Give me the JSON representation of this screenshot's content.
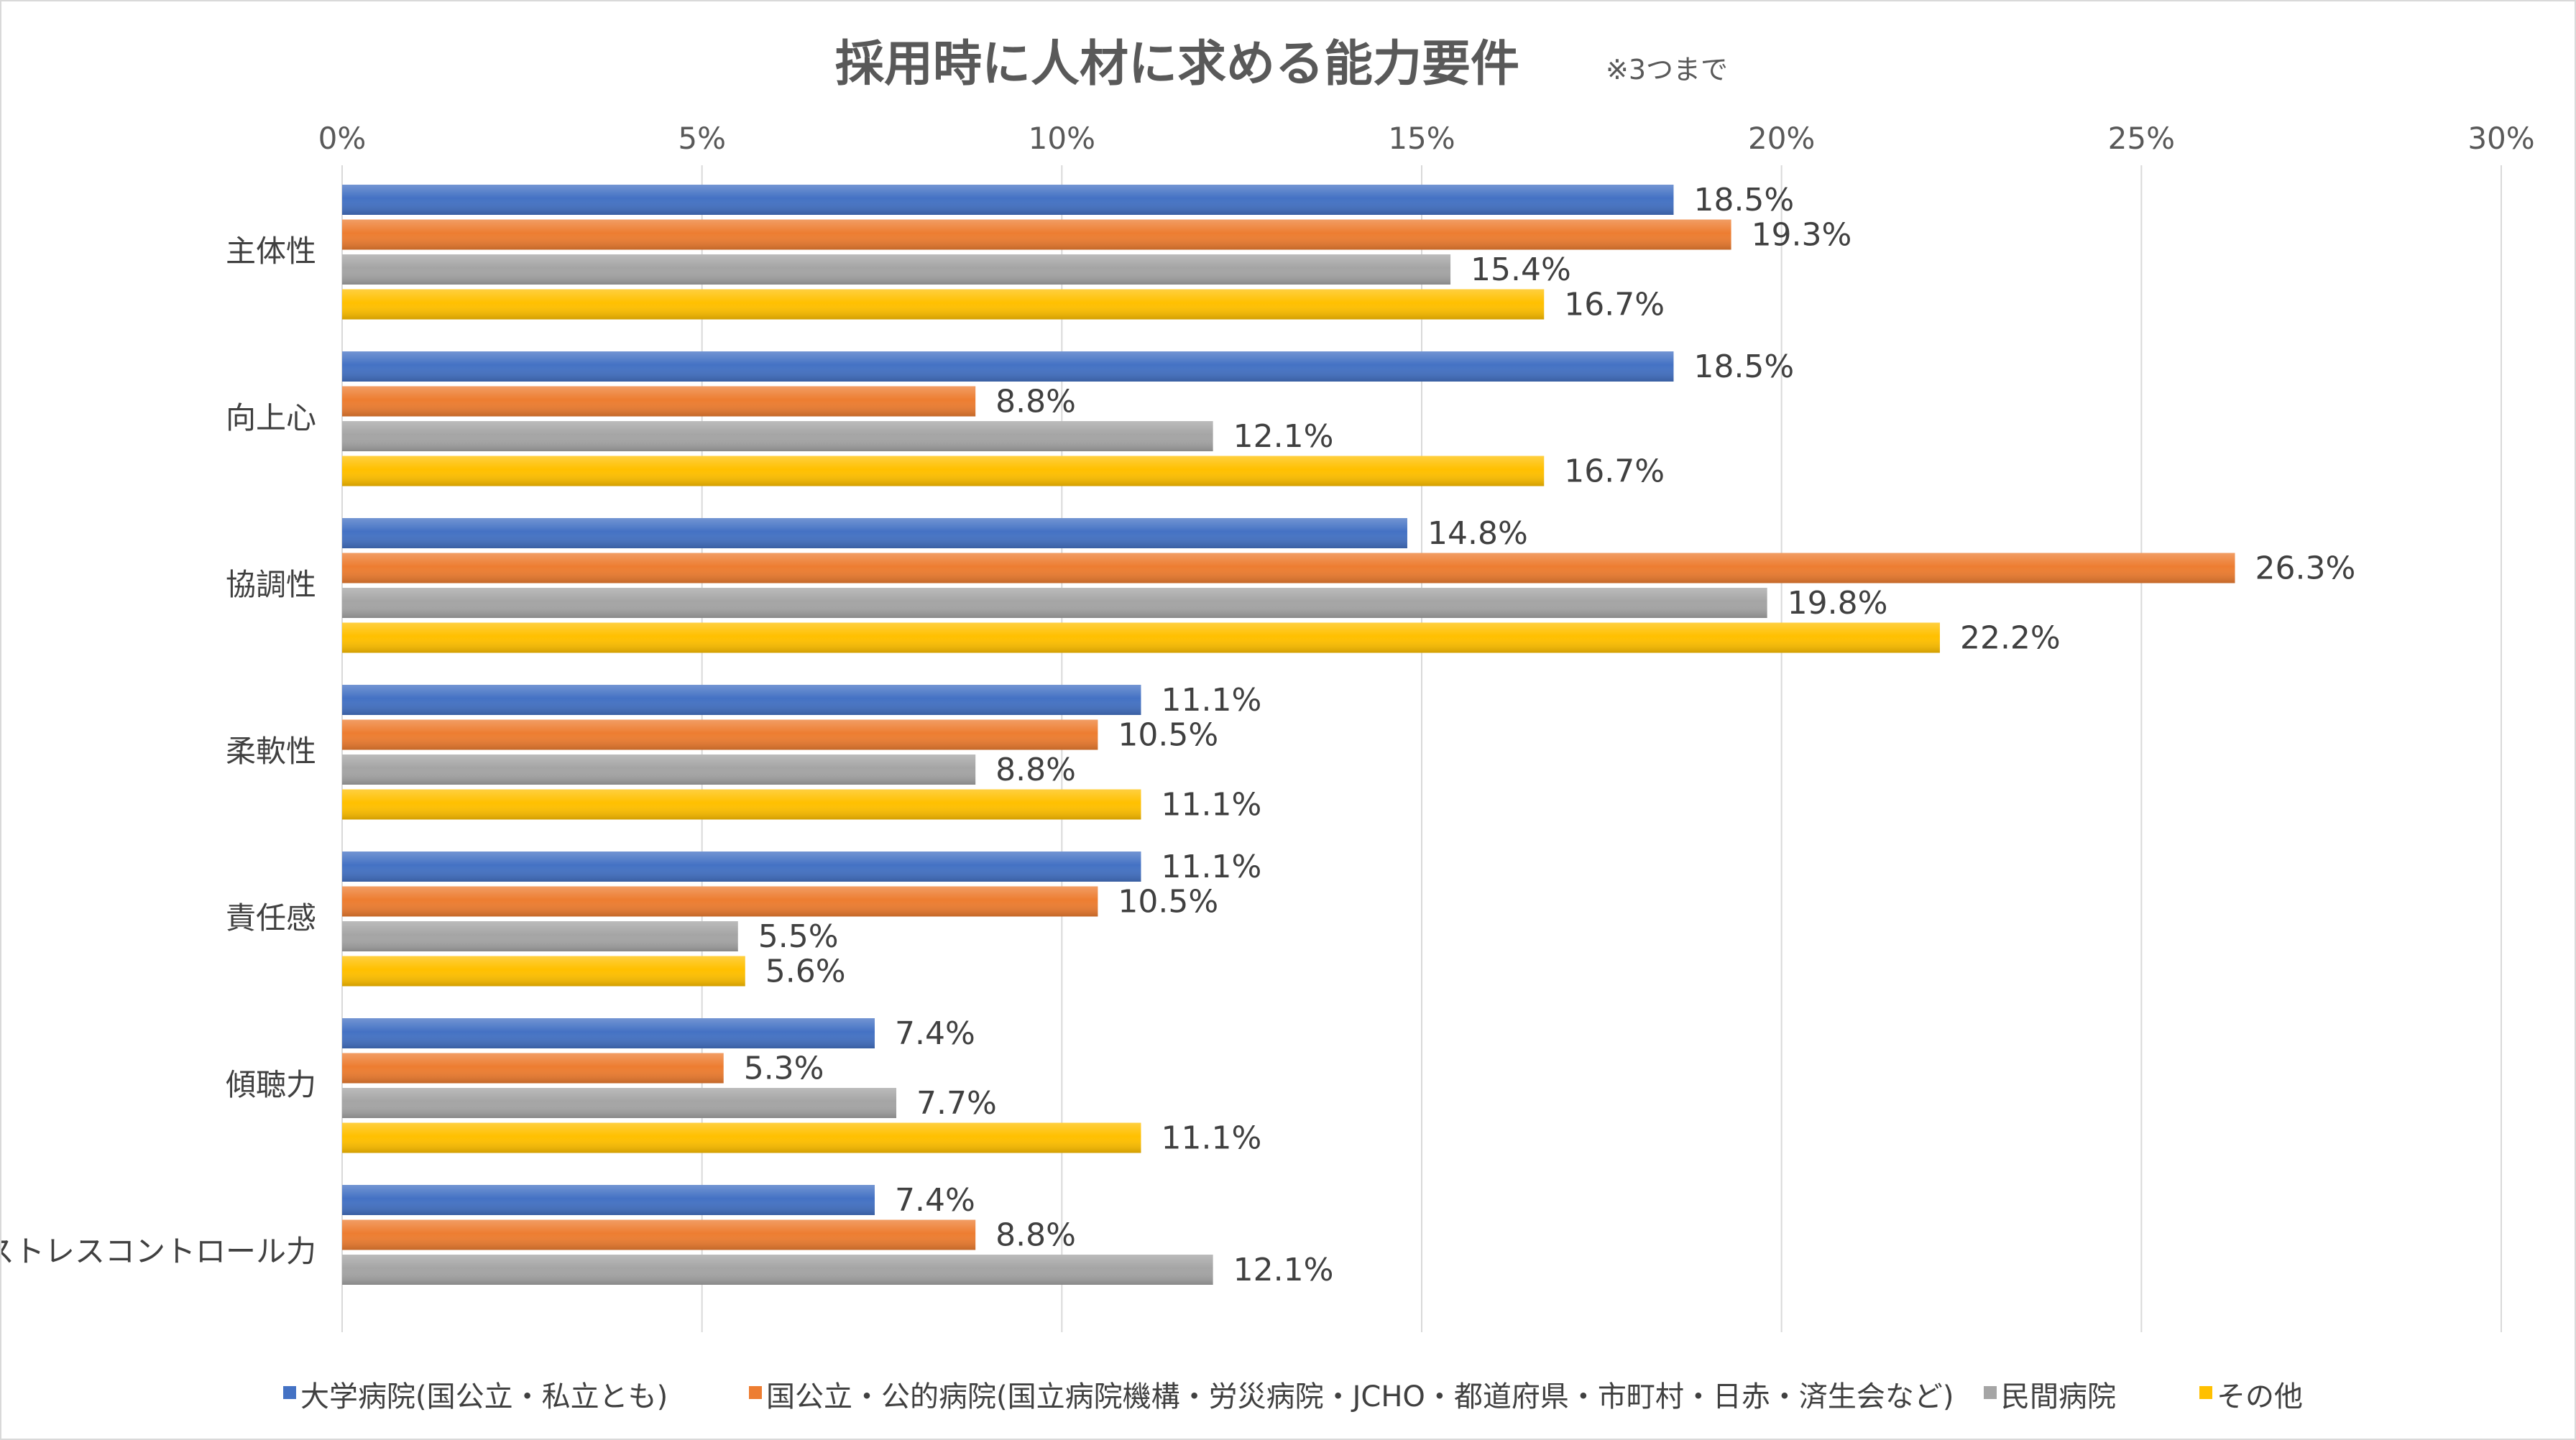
{
  "chart_data": {
    "type": "bar",
    "orientation": "horizontal",
    "title": "採用時に人材に求める能力要件",
    "subtitle": "※3つまで",
    "categories": [
      "主体性",
      "向上心",
      "協調性",
      "柔軟性",
      "責任感",
      "傾聴力",
      "ストレスコントロール力"
    ],
    "series": [
      {
        "name": "大学病院(国公立・私立とも)",
        "color": "#4472C4",
        "values": [
          18.5,
          18.5,
          14.8,
          11.1,
          11.1,
          7.4,
          7.4
        ],
        "labels": [
          "18.5%",
          "18.5%",
          "14.8%",
          "11.1%",
          "11.1%",
          "7.4%",
          "7.4%"
        ]
      },
      {
        "name": "国公立・公的病院(国立病院機構・労災病院・JCHO・都道府県・市町村・日赤・済生会など)",
        "color": "#ED7D31",
        "values": [
          19.3,
          8.8,
          26.3,
          10.5,
          10.5,
          5.3,
          8.8
        ],
        "labels": [
          "19.3%",
          "8.8%",
          "26.3%",
          "10.5%",
          "10.5%",
          "5.3%",
          "8.8%"
        ]
      },
      {
        "name": "民間病院",
        "color": "#A5A5A5",
        "values": [
          15.4,
          12.1,
          19.8,
          8.8,
          5.5,
          7.7,
          12.1
        ],
        "labels": [
          "15.4%",
          "12.1%",
          "19.8%",
          "8.8%",
          "5.5%",
          "7.7%",
          "12.1%"
        ]
      },
      {
        "name": "その他",
        "color": "#FFC000",
        "values": [
          16.7,
          16.7,
          22.2,
          11.1,
          5.6,
          11.1,
          null
        ],
        "labels": [
          "16.7%",
          "16.7%",
          "22.2%",
          "11.1%",
          "5.6%",
          "11.1%",
          null
        ]
      }
    ],
    "xlim": [
      0,
      30
    ],
    "xticks": [
      0,
      5,
      10,
      15,
      20,
      25,
      30
    ],
    "xtick_labels": [
      "0%",
      "5%",
      "10%",
      "15%",
      "20%",
      "25%",
      "30%"
    ],
    "xaxis_position": "top",
    "grid": true,
    "legend": "bottom"
  }
}
